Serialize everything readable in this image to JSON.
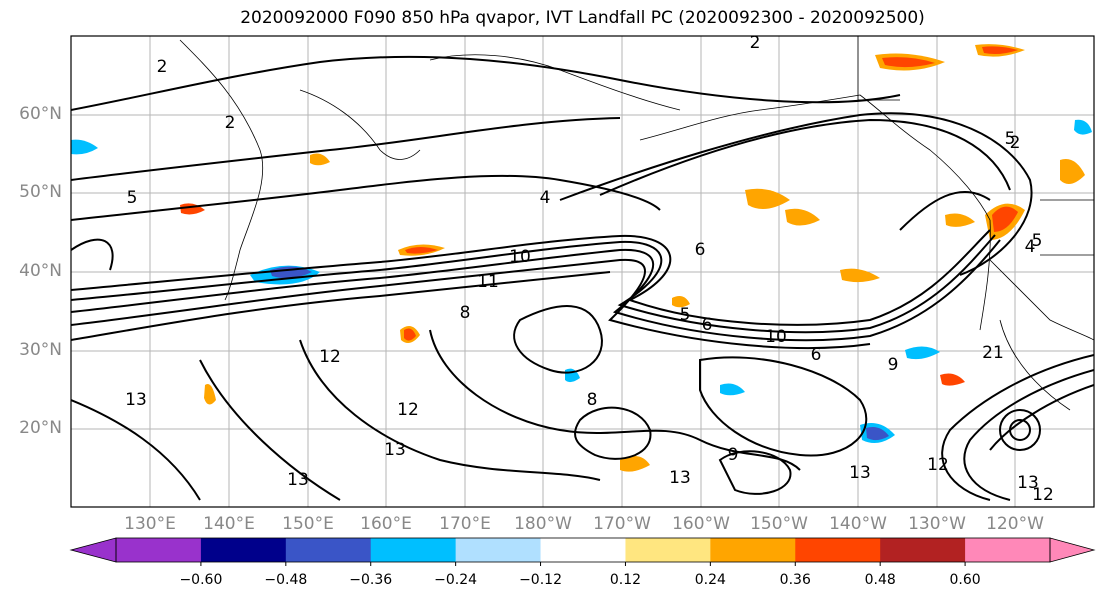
{
  "title": "2020092000 F090 850 hPa qvapor, IVT Landfall PC (2020092300 - 2020092500)",
  "latitude_labels": [
    "60°N",
    "50°N",
    "40°N",
    "30°N",
    "20°N"
  ],
  "longitude_labels": [
    "130°E",
    "140°E",
    "150°E",
    "160°E",
    "170°E",
    "180°W",
    "170°W",
    "160°W",
    "150°W",
    "140°W",
    "130°W",
    "120°W"
  ],
  "colorbar": {
    "colors": [
      "#9932cc",
      "#00008b",
      "#3a55c7",
      "#00bfff",
      "#b0e0ff",
      "#ffffff",
      "#ffe680",
      "#ffa500",
      "#ff4500",
      "#b22222",
      "#ff88b8"
    ],
    "tick_labels": [
      "−0.60",
      "−0.48",
      "−0.36",
      "−0.24",
      "−0.12",
      "0.12",
      "0.24",
      "0.36",
      "0.48",
      "0.60"
    ]
  },
  "contour_labels": [
    "2",
    "2",
    "2",
    "2",
    "4",
    "4",
    "5",
    "5",
    "5",
    "5",
    "6",
    "6",
    "6",
    "8",
    "8",
    "9",
    "9",
    "10",
    "10",
    "11",
    "12",
    "12",
    "12",
    "12",
    "13",
    "13",
    "13",
    "13",
    "13",
    "21",
    "13"
  ]
}
